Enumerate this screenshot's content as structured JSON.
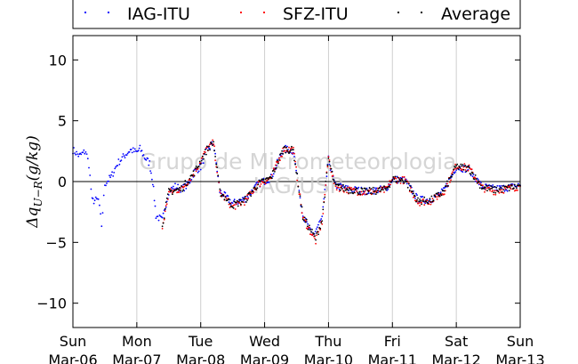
{
  "chart_data": {
    "type": "scatter",
    "title": "",
    "xlabel": "",
    "ylabel": "Δq_{U−R}(g/kg)",
    "ylabel_parts": {
      "main": "Δq",
      "sub": "U−R",
      "unit": "(g/kg)"
    },
    "watermark": [
      "Grupo de Micrometeorologia",
      "IAG/USP"
    ],
    "xlim": [
      0,
      7
    ],
    "ylim": [
      -12,
      12
    ],
    "yticks": [
      -10,
      -5,
      0,
      5,
      10
    ],
    "xticks": [
      {
        "x": 0,
        "day": "Sun",
        "date": "Mar-06"
      },
      {
        "x": 1,
        "day": "Mon",
        "date": "Mar-07"
      },
      {
        "x": 2,
        "day": "Tue",
        "date": "Mar-08"
      },
      {
        "x": 3,
        "day": "Wed",
        "date": "Mar-09"
      },
      {
        "x": 4,
        "day": "Thu",
        "date": "Mar-10"
      },
      {
        "x": 5,
        "day": "Fri",
        "date": "Mar-11"
      },
      {
        "x": 6,
        "day": "Sat",
        "date": "Mar-12"
      },
      {
        "x": 7,
        "day": "Sun",
        "date": "Mar-13"
      }
    ],
    "x_units": "days since Mar-06 00:00",
    "grid": "vertical",
    "zero_line": true,
    "legend_placement": "top, above plot",
    "series": [
      {
        "name": "IAG-ITU",
        "color": "#0000ff",
        "points": [
          [
            0.0,
            2.6
          ],
          [
            0.1,
            2.1
          ],
          [
            0.2,
            2.5
          ],
          [
            0.25,
            1.4
          ],
          [
            0.3,
            -1.6
          ],
          [
            0.4,
            -1.5
          ],
          [
            0.45,
            -3.6
          ],
          [
            0.5,
            -0.2
          ],
          [
            0.6,
            0.4
          ],
          [
            0.7,
            1.5
          ],
          [
            0.8,
            2.1
          ],
          [
            0.9,
            2.6
          ],
          [
            1.0,
            2.4
          ],
          [
            1.05,
            2.7
          ],
          [
            1.12,
            2.0
          ],
          [
            1.2,
            1.5
          ],
          [
            1.25,
            0.0
          ],
          [
            1.3,
            -2.8
          ],
          [
            1.4,
            -3.2
          ],
          [
            1.5,
            -0.8
          ],
          [
            1.6,
            -0.4
          ],
          [
            1.7,
            -0.6
          ],
          [
            1.8,
            -0.3
          ],
          [
            1.9,
            0.8
          ],
          [
            2.0,
            1.2
          ],
          [
            2.1,
            2.6
          ],
          [
            2.2,
            3.2
          ],
          [
            2.3,
            -0.8
          ],
          [
            2.5,
            -1.8
          ],
          [
            2.7,
            -1.4
          ],
          [
            2.9,
            -0.2
          ],
          [
            3.1,
            0.3
          ],
          [
            3.3,
            2.7
          ],
          [
            3.45,
            2.5
          ],
          [
            3.6,
            -2.8
          ],
          [
            3.75,
            -4.5
          ],
          [
            3.9,
            -3.0
          ],
          [
            4.0,
            1.8
          ],
          [
            4.1,
            -0.3
          ],
          [
            4.3,
            -0.6
          ],
          [
            4.6,
            -0.8
          ],
          [
            4.9,
            -0.6
          ],
          [
            5.0,
            0.2
          ],
          [
            5.2,
            0.1
          ],
          [
            5.4,
            -1.5
          ],
          [
            5.6,
            -1.5
          ],
          [
            5.8,
            -0.8
          ],
          [
            6.0,
            1.2
          ],
          [
            6.2,
            1.0
          ],
          [
            6.4,
            -0.4
          ],
          [
            6.6,
            -0.6
          ],
          [
            6.8,
            -0.5
          ],
          [
            7.0,
            -0.3
          ]
        ]
      },
      {
        "name": "SFZ-ITU",
        "color": "#ff0000",
        "points": [
          [
            1.4,
            -3.8
          ],
          [
            1.5,
            -0.9
          ],
          [
            1.7,
            -0.6
          ],
          [
            1.9,
            0.7
          ],
          [
            2.1,
            2.7
          ],
          [
            2.2,
            3.2
          ],
          [
            2.3,
            -0.9
          ],
          [
            2.5,
            -2.1
          ],
          [
            2.7,
            -1.6
          ],
          [
            2.9,
            -0.2
          ],
          [
            3.1,
            0.3
          ],
          [
            3.3,
            2.7
          ],
          [
            3.45,
            2.6
          ],
          [
            3.6,
            -3.0
          ],
          [
            3.8,
            -4.9
          ],
          [
            3.9,
            -3.3
          ],
          [
            4.0,
            2.0
          ],
          [
            4.1,
            -0.4
          ],
          [
            4.3,
            -0.7
          ],
          [
            4.6,
            -0.9
          ],
          [
            4.9,
            -0.7
          ],
          [
            5.0,
            0.2
          ],
          [
            5.2,
            0.1
          ],
          [
            5.4,
            -1.7
          ],
          [
            5.6,
            -1.6
          ],
          [
            5.8,
            -0.9
          ],
          [
            6.0,
            1.3
          ],
          [
            6.2,
            1.1
          ],
          [
            6.4,
            -0.5
          ],
          [
            6.6,
            -0.8
          ],
          [
            6.8,
            -0.6
          ],
          [
            7.0,
            -0.4
          ]
        ]
      },
      {
        "name": "Average",
        "color": "#000000",
        "points": [
          [
            1.4,
            -3.5
          ],
          [
            1.5,
            -0.85
          ],
          [
            1.7,
            -0.6
          ],
          [
            1.9,
            0.75
          ],
          [
            2.1,
            2.65
          ],
          [
            2.2,
            3.2
          ],
          [
            2.3,
            -0.85
          ],
          [
            2.5,
            -1.95
          ],
          [
            2.7,
            -1.5
          ],
          [
            2.9,
            -0.2
          ],
          [
            3.1,
            0.3
          ],
          [
            3.3,
            2.7
          ],
          [
            3.45,
            2.55
          ],
          [
            3.6,
            -2.9
          ],
          [
            3.8,
            -4.7
          ],
          [
            3.9,
            -3.15
          ],
          [
            4.0,
            1.9
          ],
          [
            4.1,
            -0.35
          ],
          [
            4.3,
            -0.65
          ],
          [
            4.6,
            -0.85
          ],
          [
            4.9,
            -0.65
          ],
          [
            5.0,
            0.2
          ],
          [
            5.2,
            0.1
          ],
          [
            5.4,
            -1.6
          ],
          [
            5.6,
            -1.55
          ],
          [
            5.8,
            -0.85
          ],
          [
            6.0,
            1.25
          ],
          [
            6.2,
            1.05
          ],
          [
            6.4,
            -0.45
          ],
          [
            6.6,
            -0.7
          ],
          [
            6.8,
            -0.55
          ],
          [
            7.0,
            -0.35
          ]
        ]
      }
    ]
  }
}
